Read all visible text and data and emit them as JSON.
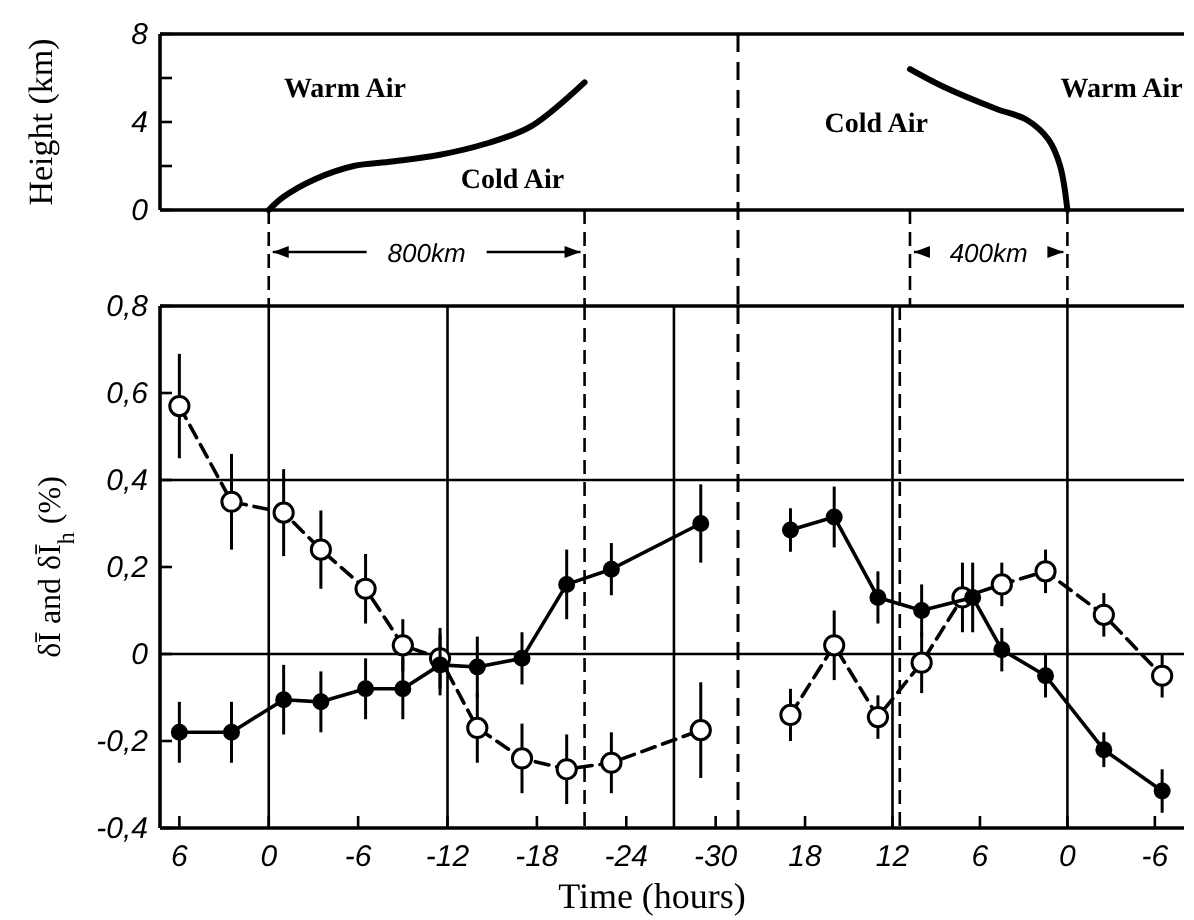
{
  "chart_data": [
    {
      "type": "line",
      "ylabel": "Height (km)",
      "xlim": [
        7.3,
        -31.5
      ],
      "ylim": [
        0,
        8
      ],
      "yticks": [
        0,
        {
          "value": 2,
          "label": null
        },
        4,
        {
          "value": 6,
          "label": null
        },
        8
      ],
      "tick_labels": "y",
      "x": [
        0,
        -1,
        -3.1,
        -5.7,
        -8.3,
        -11.4,
        -14.5,
        -17.6,
        -21.2
      ],
      "series": [
        {
          "color": "#000000",
          "values": [
            0,
            0.6,
            1.4,
            2.0,
            2.2,
            2.5,
            3.0,
            3.8,
            5.8
          ]
        }
      ],
      "annotations": [
        "Warm Air",
        "Cold Air",
        "800km"
      ]
    },
    {
      "type": "line",
      "xlim": [
        22.6,
        -8
      ],
      "ylim": [
        0,
        8
      ],
      "tick_labels": false,
      "x": [
        10.8,
        8.5,
        4.9,
        2.8,
        1.3,
        0.5,
        0
      ],
      "series": [
        {
          "color": "#000000",
          "values": [
            6.4,
            5.6,
            4.6,
            4.1,
            3.2,
            2.0,
            0
          ]
        }
      ],
      "annotations": [
        "Cold Air",
        "Warm Air",
        "400km"
      ]
    },
    {
      "type": "line",
      "xlabel": "Time (hours)",
      "ylabel": "δĪ and δĪ$_{h}$ (%)",
      "xlim": [
        7.3,
        -31.5
      ],
      "ylim": [
        -0.4,
        0.8
      ],
      "xticks": [
        6,
        0,
        -6,
        -12,
        -18,
        -24,
        -30
      ],
      "yticks": [
        {
          "value": -0.4,
          "label": "-0,4"
        },
        {
          "value": -0.2,
          "label": "-0,2"
        },
        0,
        {
          "value": 0.2,
          "label": "0,2"
        },
        {
          "value": 0.4,
          "label": "0,4"
        },
        {
          "value": 0.6,
          "label": "0,6"
        },
        {
          "value": 0.8,
          "label": "0,8"
        }
      ],
      "marker": "circle",
      "x": [
        6,
        2.5,
        -1,
        -3.5,
        -6.5,
        -9,
        -11.5,
        -14,
        -17,
        -20,
        -23,
        -29
      ],
      "series": [
        {
          "color": "#000000",
          "line_style": "dashed",
          "values": [
            0.57,
            0.35,
            0.325,
            0.24,
            0.15,
            0.02,
            -0.01,
            -0.17,
            -0.24,
            -0.265,
            -0.25,
            -0.175
          ],
          "errors": [
            0.12,
            0.11,
            0.1,
            0.09,
            0.08,
            0.06,
            0.07,
            0.08,
            0.08,
            0.08,
            0.07,
            0.11
          ]
        },
        {
          "color": "#000000",
          "line_style": "solid",
          "values": [
            -0.18,
            -0.18,
            -0.105,
            -0.11,
            -0.08,
            -0.08,
            -0.025,
            -0.03,
            -0.01,
            0.16,
            0.195,
            0.3
          ],
          "errors": [
            0.07,
            0.07,
            0.08,
            0.07,
            0.07,
            0.07,
            0.07,
            0.07,
            0.06,
            0.08,
            0.06,
            0.09
          ]
        }
      ],
      "ref_lines": [
        {
          "axis": "y",
          "value": 0,
          "line_style": "solid"
        },
        {
          "axis": "y",
          "value": 0.4,
          "line_style": "solid"
        },
        {
          "axis": "x",
          "value": 0,
          "line_style": "solid"
        },
        {
          "axis": "x",
          "value": -12,
          "line_style": "solid"
        },
        {
          "axis": "x",
          "value": -27.2,
          "line_style": "solid"
        },
        {
          "axis": "x",
          "value": -21.2,
          "line_style": "dashed"
        }
      ]
    },
    {
      "type": "line",
      "xlim": [
        22.6,
        -8
      ],
      "ylim": [
        -0.4,
        0.8
      ],
      "tick_labels": "x",
      "xticks": [
        18,
        12,
        6,
        0,
        -6
      ],
      "marker": "circle",
      "series": [
        {
          "color": "#000000",
          "line_style": "dashed",
          "x": [
            19,
            16,
            13,
            10,
            7.2,
            4.5,
            1.5,
            -2.5,
            -6.5
          ],
          "values": [
            -0.14,
            0.02,
            -0.145,
            -0.02,
            0.13,
            0.16,
            0.19,
            0.09,
            -0.05
          ],
          "errors": [
            0.06,
            0.08,
            0.05,
            0.07,
            0.08,
            0.05,
            0.05,
            0.05,
            0.05
          ]
        },
        {
          "color": "#000000",
          "line_style": "solid",
          "x": [
            19,
            16,
            13,
            10,
            6.5,
            4.5,
            1.5,
            -2.5,
            -6.5
          ],
          "values": [
            0.285,
            0.315,
            0.13,
            0.1,
            0.13,
            0.01,
            -0.05,
            -0.22,
            -0.315
          ],
          "errors": [
            0.05,
            0.07,
            0.06,
            0.06,
            0.08,
            0.05,
            0.05,
            0.04,
            0.05
          ]
        }
      ],
      "ref_lines": [
        {
          "axis": "y",
          "value": 0,
          "line_style": "solid"
        },
        {
          "axis": "y",
          "value": 0.4,
          "line_style": "solid"
        },
        {
          "axis": "x",
          "value": 12,
          "line_style": "solid"
        },
        {
          "axis": "x",
          "value": 0,
          "line_style": "solid"
        },
        {
          "axis": "x",
          "value": 11.5,
          "line_style": "dashed"
        }
      ]
    }
  ]
}
